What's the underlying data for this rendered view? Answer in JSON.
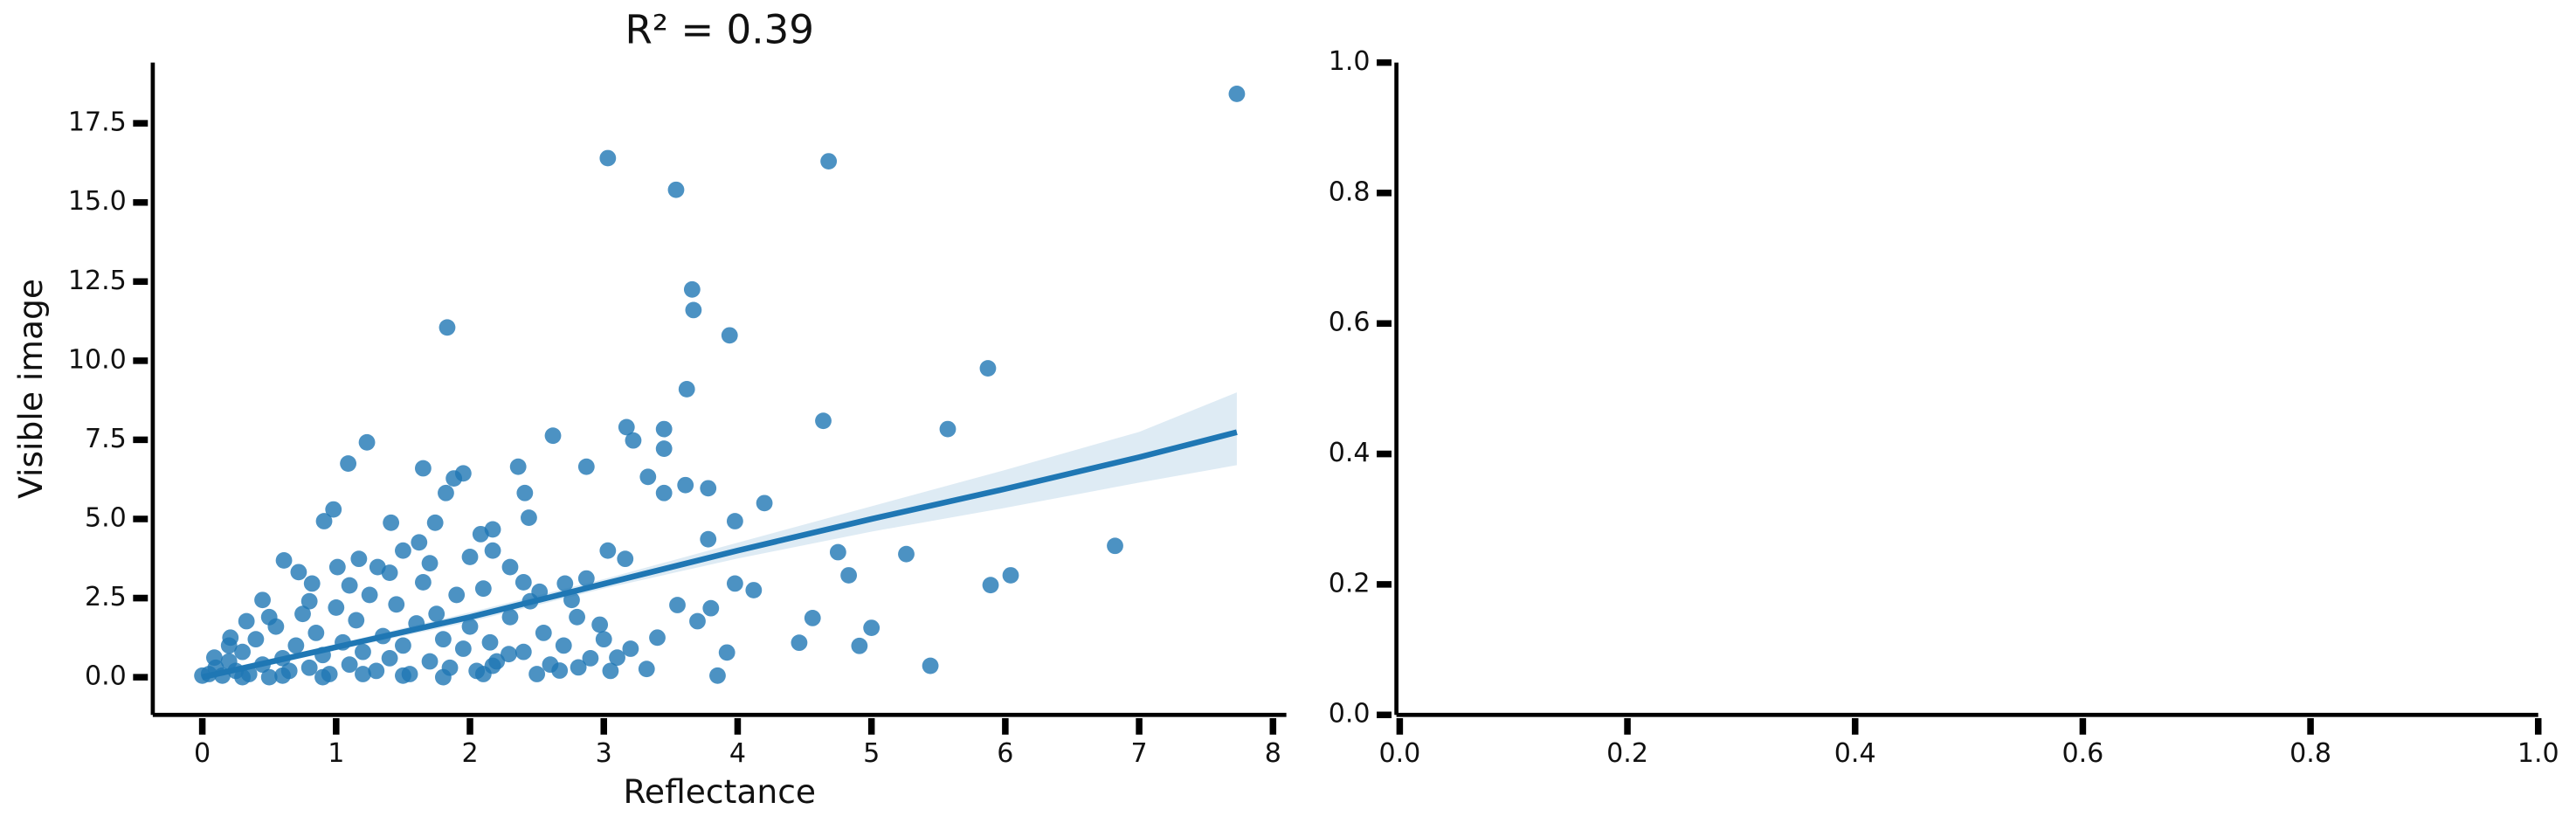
{
  "chart_data": [
    {
      "type": "scatter",
      "title": "R² = 0.39",
      "xlabel": "Reflectance",
      "ylabel": "Visible image",
      "color": "#1f77b4",
      "xlim": [
        -0.37,
        8.1
      ],
      "ylim": [
        -1.19,
        19.42
      ],
      "xticks": [
        0,
        1,
        2,
        3,
        4,
        5,
        6,
        7,
        8
      ],
      "yticks": [
        {
          "value": 0,
          "label": "0.0"
        },
        2.5,
        {
          "value": 5,
          "label": "5.0"
        },
        7.5,
        {
          "value": 10,
          "label": "10.0"
        },
        12.5,
        {
          "value": 15,
          "label": "15.0"
        },
        17.5
      ],
      "x": [
        7.73,
        3.03,
        4.68,
        3.54,
        3.66,
        3.67,
        1.83,
        3.94,
        3.62,
        5.87,
        4.64,
        5.57,
        3.17,
        3.45,
        1.23,
        2.62,
        3.22,
        3.45,
        1.09,
        1.65,
        2.36,
        2.87,
        1.95,
        1.88,
        3.33,
        3.61,
        3.45,
        3.78,
        1.82,
        2.41,
        0.98,
        0.91,
        4.2,
        3.98,
        1.41,
        1.74,
        2.44,
        3.78,
        0.61,
        6.82,
        5.26,
        4.75,
        6.04,
        5.89,
        4.83,
        4.12,
        3.98,
        4.56,
        4.46,
        5.0,
        4.91,
        5.44,
        3.85,
        3.92,
        3.8,
        3.55,
        3.7,
        3.32,
        3.1,
        2.81,
        2.67,
        2.29,
        2.17,
        2.97,
        3.4,
        2.71,
        2.52,
        3.16,
        3.03,
        2.87,
        2.17,
        2.3,
        2.08,
        2.17,
        2.76,
        1.62,
        1.5,
        1.31,
        1.17,
        1.01,
        0.82,
        0.72,
        0.45,
        0.33,
        0.21,
        0.09,
        0,
        0.05,
        0.1,
        0.15,
        0.2,
        0.25,
        0.3,
        0.35,
        0.4,
        0.45,
        0.5,
        0.55,
        0.6,
        0.65,
        0.7,
        0.75,
        0.8,
        0.85,
        0.9,
        0.95,
        1.0,
        1.05,
        1.1,
        1.15,
        1.2,
        1.25,
        1.3,
        1.35,
        1.4,
        1.45,
        1.5,
        1.55,
        1.6,
        1.65,
        1.7,
        1.75,
        1.8,
        1.85,
        1.9,
        1.95,
        2.0,
        2.05,
        2.1,
        2.15,
        2.2,
        2.3,
        2.4,
        2.45,
        2.5,
        2.55,
        2.6,
        2.7,
        2.8,
        2.9,
        3.0,
        3.05,
        3.2,
        0.3,
        0.6,
        0.9,
        1.2,
        1.5,
        1.8,
        2.1,
        0.2,
        0.5,
        0.8,
        1.1,
        1.4,
        1.7,
        2.0,
        2.4
      ],
      "values": [
        18.43,
        16.4,
        16.3,
        15.4,
        12.25,
        11.6,
        11.05,
        10.8,
        9.1,
        9.76,
        8.1,
        7.84,
        7.9,
        7.84,
        7.42,
        7.63,
        7.48,
        7.22,
        6.75,
        6.6,
        6.65,
        6.65,
        6.44,
        6.28,
        6.33,
        6.07,
        5.82,
        5.97,
        5.82,
        5.82,
        5.3,
        4.93,
        5.5,
        4.93,
        4.88,
        4.88,
        5.04,
        4.36,
        3.69,
        4.15,
        3.89,
        3.95,
        3.22,
        2.91,
        3.22,
        2.75,
        2.96,
        1.87,
        1.09,
        1.56,
        0.99,
        0.36,
        0.05,
        0.78,
        2.18,
        2.28,
        1.77,
        0.26,
        0.62,
        0.31,
        0.21,
        0.73,
        0.36,
        1.66,
        1.25,
        2.96,
        2.7,
        3.74,
        4.0,
        3.12,
        4.0,
        3.48,
        4.52,
        4.67,
        2.44,
        4.26,
        4.0,
        3.48,
        3.74,
        3.48,
        2.96,
        3.32,
        2.44,
        1.77,
        1.25,
        0.62,
        0.05,
        0.1,
        0.3,
        0.05,
        0.5,
        0.2,
        0.8,
        0.1,
        1.2,
        0.4,
        0.0,
        1.6,
        0.6,
        0.2,
        1.0,
        2.0,
        0.3,
        1.4,
        0.7,
        0.1,
        2.2,
        1.1,
        0.4,
        1.8,
        0.8,
        2.6,
        0.2,
        1.3,
        0.6,
        2.3,
        1.0,
        0.1,
        1.7,
        3.0,
        0.5,
        2.0,
        1.2,
        0.3,
        2.6,
        0.9,
        1.6,
        0.2,
        2.8,
        1.1,
        0.5,
        1.9,
        0.8,
        2.4,
        0.1,
        1.4,
        0.4,
        1.0,
        1.9,
        0.6,
        1.2,
        0.2,
        0.9,
        0.0,
        0.05,
        0.0,
        0.1,
        0.05,
        0.0,
        0.1,
        1.0,
        1.9,
        2.4,
        2.9,
        3.3,
        3.6,
        3.8,
        3.0
      ],
      "fit": {
        "x": [
          0,
          1,
          2,
          3,
          4,
          5,
          6,
          7,
          7.73
        ],
        "values": [
          0,
          0.95,
          1.9,
          2.95,
          4.0,
          5.0,
          5.95,
          6.95,
          7.74
        ],
        "lower": [
          -0.1,
          0.85,
          1.75,
          2.8,
          3.75,
          4.6,
          5.35,
          6.15,
          6.7
        ],
        "upper": [
          0.1,
          1.05,
          2.05,
          3.1,
          4.25,
          5.4,
          6.55,
          7.75,
          9.0
        ]
      }
    },
    {
      "type": "axes",
      "xlim": [
        0,
        1
      ],
      "ylim": [
        0,
        1
      ],
      "xticks": [
        {
          "value": 0,
          "label": "0.0"
        },
        0.2,
        0.4,
        0.6,
        0.8,
        {
          "value": 1,
          "label": "1.0"
        }
      ],
      "yticks": [
        {
          "value": 0,
          "label": "0.0"
        },
        0.2,
        0.4,
        0.6,
        0.8,
        {
          "value": 1,
          "label": "1.0"
        }
      ]
    }
  ]
}
